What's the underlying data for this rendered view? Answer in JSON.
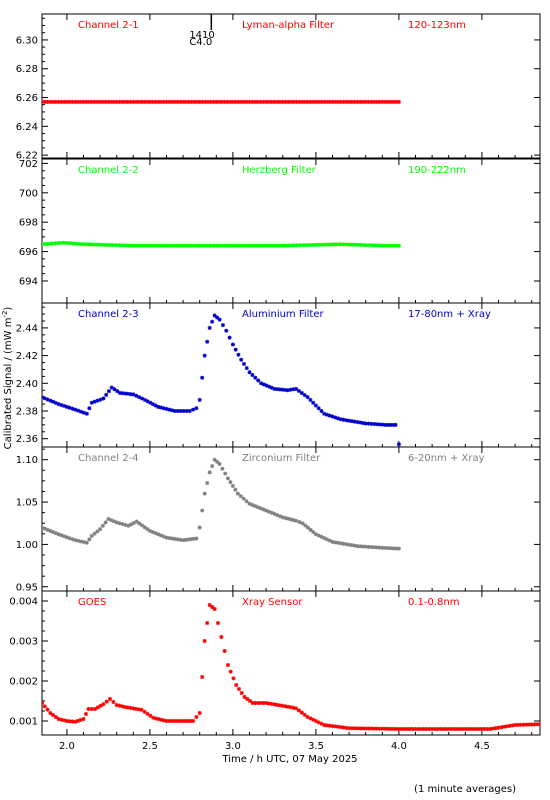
{
  "figure": {
    "xlabel": "Time / h UTC, 07 May 2025",
    "ylabel": "Calibrated Signal / (mW m",
    "ylabel_sup": "-2",
    "ylabel_close": ")",
    "footnote": "(1 minute averages)"
  },
  "chart_data": [
    {
      "type": "scatter",
      "channel": "Channel 2-1",
      "filter": "Lyman-alpha Filter",
      "band": "120-123nm",
      "color": "#ff0000",
      "xlim": [
        1.85,
        4.85
      ],
      "ylim": [
        6.218,
        6.318
      ],
      "yticks": [
        6.22,
        6.24,
        6.26,
        6.28,
        6.3
      ],
      "ytick_labels": [
        "6.22",
        "6.24",
        "6.26",
        "6.28",
        "6.30"
      ],
      "flare_marker": {
        "x": 2.87,
        "label_top": "1410",
        "label_bottom": "C4.0"
      },
      "series": [
        {
          "x": [
            1.85,
            2.1,
            2.4,
            2.7,
            3.0,
            3.3,
            3.6,
            3.9,
            4.0
          ],
          "y": [
            6.257,
            6.257,
            6.257,
            6.257,
            6.257,
            6.257,
            6.257,
            6.257,
            6.257
          ]
        }
      ]
    },
    {
      "type": "scatter",
      "channel": "Channel 2-2",
      "filter": "Herzberg Filter",
      "band": "190-222nm",
      "color": "#00ff00",
      "xlim": [
        1.85,
        4.85
      ],
      "ylim": [
        692.5,
        702.3
      ],
      "yticks": [
        694,
        696,
        698,
        700,
        702
      ],
      "ytick_labels": [
        "694",
        "696",
        "698",
        "700",
        "702"
      ],
      "series": [
        {
          "x": [
            1.85,
            1.98,
            2.1,
            2.4,
            2.7,
            3.0,
            3.3,
            3.65,
            3.9,
            4.0
          ],
          "y": [
            696.5,
            696.6,
            696.5,
            696.4,
            696.4,
            696.4,
            696.4,
            696.5,
            696.4,
            696.4
          ]
        }
      ]
    },
    {
      "type": "scatter",
      "channel": "Channel 2-3",
      "filter": "Aluminium Filter",
      "band": "17-80nm + Xray",
      "color": "#0000cc",
      "xlim": [
        1.85,
        4.85
      ],
      "ylim": [
        2.354,
        2.458
      ],
      "yticks": [
        2.36,
        2.38,
        2.4,
        2.42,
        2.44
      ],
      "ytick_labels": [
        "2.36",
        "2.38",
        "2.40",
        "2.42",
        "2.44"
      ],
      "series": [
        {
          "x": [
            1.85,
            1.95,
            2.05,
            2.12,
            2.15,
            2.22,
            2.27,
            2.32,
            2.4,
            2.47,
            2.55,
            2.65,
            2.74,
            2.78,
            2.8,
            2.83,
            2.86,
            2.89,
            2.92,
            2.96,
            3.0,
            3.05,
            3.1,
            3.17,
            3.25,
            3.33,
            3.38,
            3.45,
            3.55,
            3.65,
            3.8,
            3.92,
            3.98,
            4.0
          ],
          "y": [
            2.39,
            2.385,
            2.381,
            2.378,
            2.386,
            2.389,
            2.397,
            2.393,
            2.392,
            2.388,
            2.383,
            2.38,
            2.38,
            2.382,
            2.388,
            2.42,
            2.44,
            2.449,
            2.446,
            2.438,
            2.428,
            2.417,
            2.408,
            2.4,
            2.396,
            2.395,
            2.396,
            2.39,
            2.378,
            2.374,
            2.371,
            2.37,
            2.37,
            2.356
          ]
        }
      ]
    },
    {
      "type": "scatter",
      "channel": "Channel 2-4",
      "filter": "Zirconium Filter",
      "band": "6-20nm + Xray",
      "color": "#808080",
      "xlim": [
        1.85,
        4.85
      ],
      "ylim": [
        0.945,
        1.115
      ],
      "yticks": [
        0.95,
        1.0,
        1.05,
        1.1
      ],
      "ytick_labels": [
        "0.95",
        "1.00",
        "1.05",
        "1.10"
      ],
      "series": [
        {
          "x": [
            1.85,
            1.95,
            2.05,
            2.12,
            2.15,
            2.2,
            2.25,
            2.3,
            2.37,
            2.42,
            2.5,
            2.6,
            2.7,
            2.78,
            2.8,
            2.83,
            2.86,
            2.89,
            2.92,
            2.97,
            3.03,
            3.1,
            3.2,
            3.3,
            3.38,
            3.42,
            3.5,
            3.6,
            3.75,
            3.9,
            4.0
          ],
          "y": [
            1.02,
            1.012,
            1.005,
            1.002,
            1.01,
            1.018,
            1.03,
            1.026,
            1.022,
            1.027,
            1.016,
            1.008,
            1.005,
            1.007,
            1.02,
            1.06,
            1.085,
            1.1,
            1.095,
            1.078,
            1.06,
            1.048,
            1.04,
            1.032,
            1.028,
            1.025,
            1.012,
            1.003,
            0.998,
            0.996,
            0.995
          ]
        }
      ]
    },
    {
      "type": "scatter",
      "channel": "GOES",
      "filter": "Xray Sensor",
      "band": "0.1-0.8nm",
      "color": "#ff0000",
      "xlim": [
        1.85,
        4.85
      ],
      "ylim": [
        0.00065,
        0.00425
      ],
      "yticks": [
        0.001,
        0.002,
        0.003,
        0.004
      ],
      "ytick_labels": [
        "0.001",
        "0.002",
        "0.003",
        "0.004"
      ],
      "series": [
        {
          "x": [
            1.85,
            1.9,
            1.95,
            2.0,
            2.05,
            2.1,
            2.13,
            2.17,
            2.22,
            2.26,
            2.3,
            2.35,
            2.45,
            2.52,
            2.6,
            2.7,
            2.76,
            2.8,
            2.83,
            2.86,
            2.89,
            2.93,
            2.97,
            3.02,
            3.07,
            3.12,
            3.2,
            3.3,
            3.38,
            3.45,
            3.55,
            3.7,
            4.0,
            4.3,
            4.55,
            4.7,
            4.85
          ],
          "y": [
            0.00145,
            0.0012,
            0.00105,
            0.001,
            0.00098,
            0.00105,
            0.0013,
            0.0013,
            0.00142,
            0.00155,
            0.0014,
            0.00135,
            0.00128,
            0.00108,
            0.001,
            0.001,
            0.001,
            0.0012,
            0.003,
            0.0039,
            0.0038,
            0.0031,
            0.0024,
            0.0019,
            0.0016,
            0.00145,
            0.00145,
            0.00138,
            0.00132,
            0.0011,
            0.0009,
            0.00082,
            0.0008,
            0.0008,
            0.0008,
            0.0009,
            0.00092
          ]
        }
      ]
    }
  ],
  "xaxis": {
    "ticks": [
      2.0,
      2.5,
      3.0,
      3.5,
      4.0,
      4.5
    ],
    "tick_labels": [
      "2.0",
      "2.5",
      "3.0",
      "3.5",
      "4.0",
      "4.5"
    ]
  }
}
